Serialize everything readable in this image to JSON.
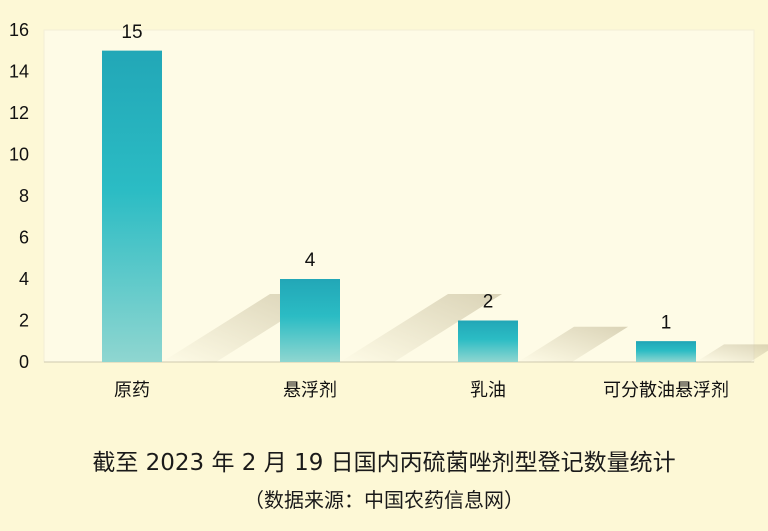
{
  "colors": {
    "background": "#fdf8d6",
    "plot_background": "#fefbe6",
    "bar_top": "#22a7b7",
    "bar_mid": "#2bbcc4",
    "bar_bottom": "#8fd6d0",
    "shadow": "#c9c0a0",
    "grid": "#f3eed7",
    "axis": "#cfcab0"
  },
  "chart_data": {
    "type": "bar",
    "categories": [
      "原药",
      "悬浮剂",
      "乳油",
      "可分散油悬浮剂"
    ],
    "values": [
      15,
      4,
      2,
      1
    ],
    "data_labels": [
      "15",
      "4",
      "2",
      "1"
    ],
    "ylim": [
      0,
      16
    ],
    "yticks": [
      0,
      2,
      4,
      6,
      8,
      10,
      12,
      14,
      16
    ],
    "ytick_labels": [
      "0",
      "2",
      "4",
      "6",
      "8",
      "10",
      "12",
      "14",
      "16"
    ],
    "grid": false,
    "legend": "none"
  },
  "caption": {
    "title": "截至 2023 年 2 月 19 日国内丙硫菌唑剂型登记数量统计",
    "source": "（数据来源：中国农药信息网）"
  }
}
